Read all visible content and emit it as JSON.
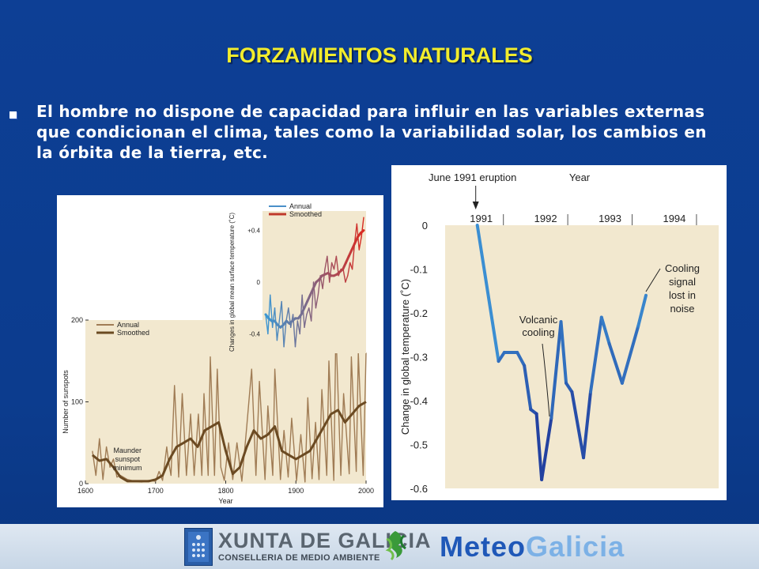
{
  "slide": {
    "title": "FORZAMIENTOS NATURALES",
    "bullet_lines": [
      "El hombre no dispone de capacidad para influir en las variables externas",
      "que condicionan el clima, tales como la variabilidad solar, los cambios en",
      "la órbita de la tierra, etc."
    ],
    "colors": {
      "background": "#0c3c8e",
      "title": "#f2ec2c",
      "text": "#ffffff"
    }
  },
  "footer": {
    "xunta": "XUNTA DE GALICIA",
    "conselleria": "CONSELLERIA DE MEDIO AMBIENTE",
    "meteo_a": "Meteo",
    "meteo_b": "Galicia",
    "icons": [
      "galicia-shield-icon",
      "meteogalicia-logo-icon"
    ]
  },
  "chart_data": [
    {
      "type": "line",
      "ylabel": "Number of sunspots",
      "xlabel": "Year",
      "xlim": [
        1600,
        2000
      ],
      "ylim": [
        0,
        200
      ],
      "x_ticks": [
        1600,
        1700,
        1800,
        1900,
        2000
      ],
      "y_ticks": [
        0,
        100,
        200
      ],
      "legend": [
        "Annual",
        "Smoothed"
      ],
      "annotation": [
        "Maunder",
        "sunspot",
        "minimum"
      ],
      "series": [
        {
          "name": "Annual",
          "color": "#a07c55",
          "x": [
            1610,
            1615,
            1620,
            1625,
            1630,
            1635,
            1640,
            1645,
            1650,
            1660,
            1670,
            1680,
            1690,
            1700,
            1705,
            1710,
            1716,
            1718,
            1722,
            1727,
            1733,
            1738,
            1744,
            1750,
            1755,
            1761,
            1766,
            1769,
            1775,
            1778,
            1784,
            1788,
            1793,
            1798,
            1804,
            1810,
            1816,
            1823,
            1830,
            1837,
            1843,
            1848,
            1856,
            1860,
            1867,
            1870,
            1878,
            1883,
            1889,
            1894,
            1901,
            1907,
            1913,
            1917,
            1923,
            1928,
            1933,
            1937,
            1944,
            1947,
            1954,
            1957,
            1964,
            1968,
            1976,
            1979,
            1986,
            1989,
            1996,
            2000
          ],
          "y": [
            40,
            10,
            55,
            5,
            45,
            20,
            30,
            8,
            10,
            5,
            3,
            2,
            4,
            3,
            15,
            4,
            45,
            30,
            10,
            120,
            8,
            110,
            10,
            85,
            10,
            85,
            10,
            110,
            10,
            155,
            10,
            140,
            20,
            4,
            50,
            5,
            50,
            3,
            70,
            140,
            10,
            125,
            5,
            95,
            10,
            140,
            5,
            65,
            8,
            80,
            4,
            60,
            2,
            105,
            6,
            75,
            5,
            115,
            10,
            150,
            4,
            190,
            10,
            110,
            12,
            155,
            15,
            160,
            10,
            160
          ]
        },
        {
          "name": "Smoothed",
          "color": "#6b4a22",
          "x": [
            1610,
            1620,
            1630,
            1640,
            1650,
            1660,
            1670,
            1680,
            1690,
            1700,
            1710,
            1720,
            1730,
            1740,
            1750,
            1760,
            1770,
            1780,
            1790,
            1800,
            1810,
            1820,
            1830,
            1840,
            1850,
            1860,
            1870,
            1880,
            1890,
            1900,
            1910,
            1920,
            1930,
            1940,
            1950,
            1960,
            1970,
            1980,
            1990,
            2000
          ],
          "y": [
            35,
            28,
            30,
            20,
            8,
            3,
            3,
            3,
            3,
            5,
            10,
            30,
            45,
            50,
            55,
            45,
            65,
            70,
            75,
            40,
            12,
            20,
            45,
            65,
            55,
            60,
            70,
            40,
            35,
            30,
            35,
            40,
            55,
            70,
            85,
            90,
            75,
            85,
            95,
            100
          ]
        }
      ]
    },
    {
      "type": "line",
      "ylabel": "Changes in global mean surface temperature (˚C)",
      "y_ticks": [
        "+0.4",
        "0",
        "-0.4"
      ],
      "ylim": [
        -0.55,
        0.55
      ],
      "legend": [
        "Annual",
        "Smoothed"
      ],
      "series": [
        {
          "name": "Annual",
          "y": [
            -0.25,
            -0.4,
            -0.1,
            -0.35,
            -0.2,
            -0.45,
            -0.3,
            -0.15,
            -0.5,
            -0.3,
            -0.2,
            -0.35,
            -0.25,
            -0.5,
            -0.3,
            -0.4,
            -0.1,
            -0.35,
            -0.25,
            -0.2,
            -0.3,
            0.0,
            -0.2,
            -0.1,
            0.05,
            -0.05,
            0.1,
            0.2,
            0.0,
            0.15,
            0.1,
            0.2,
            0.05,
            0.1,
            0.1,
            0.0,
            0.05,
            0.15,
            0.1,
            0.3,
            0.45,
            0.25,
            0.35,
            0.5
          ]
        },
        {
          "name": "Smoothed",
          "y": [
            -0.25,
            -0.28,
            -0.3,
            -0.3,
            -0.33,
            -0.35,
            -0.33,
            -0.3,
            -0.32,
            -0.3,
            -0.28,
            -0.28,
            -0.25,
            -0.2,
            -0.15,
            -0.1,
            -0.05,
            0.0,
            0.02,
            0.05,
            0.06,
            0.07,
            0.05,
            0.05,
            0.06,
            0.08,
            0.1,
            0.15,
            0.2,
            0.25,
            0.3,
            0.35,
            0.38,
            0.4
          ]
        }
      ]
    },
    {
      "type": "line",
      "title": "June 1991 eruption",
      "xlabel": "Year",
      "ylabel": "Change in global temperature (˚C)",
      "x_ticks": [
        1991,
        1992,
        1993,
        1994
      ],
      "xlim": [
        1990.5,
        1994.75
      ],
      "y_ticks": [
        0,
        -0.1,
        -0.2,
        -0.3,
        -0.4,
        -0.5,
        -0.6
      ],
      "ylim": [
        -0.6,
        0
      ],
      "annotations": [
        {
          "lines": [
            "Volcanic",
            "cooling"
          ]
        },
        {
          "lines": [
            "Cooling",
            "signal",
            "lost in",
            "noise"
          ]
        }
      ],
      "series": [
        {
          "name": "",
          "x": [
            1991.0,
            1991.33,
            1991.42,
            1991.62,
            1991.73,
            1991.83,
            1991.92,
            1992.0,
            1992.15,
            1992.3,
            1992.38,
            1992.47,
            1992.65,
            1992.76,
            1992.93,
            1993.05,
            1993.25,
            1993.5,
            1993.62
          ],
          "y": [
            0.0,
            -0.31,
            -0.29,
            -0.29,
            -0.32,
            -0.42,
            -0.43,
            -0.58,
            -0.44,
            -0.22,
            -0.36,
            -0.38,
            -0.53,
            -0.38,
            -0.21,
            -0.27,
            -0.36,
            -0.23,
            -0.16
          ]
        }
      ]
    }
  ]
}
